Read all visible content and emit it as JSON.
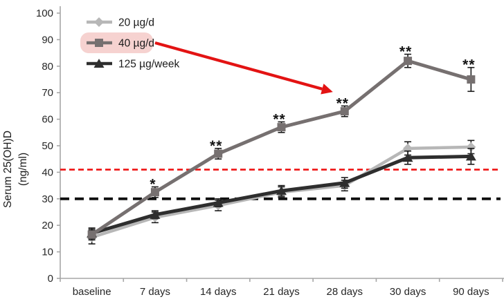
{
  "figure": {
    "background": "#ffffff"
  },
  "chart_data": {
    "type": "line",
    "title": "",
    "xlabel": "",
    "ylabel": "Serum 25(OH)D (ng/ml)",
    "ylabel_lines": [
      "Serum 25(OH)D",
      "(ng/ml)"
    ],
    "ylim": [
      0,
      100
    ],
    "ytick_step": 10,
    "grid": false,
    "legend_position": "top-left-inside",
    "categories": [
      "baseline",
      "7 days",
      "14 days",
      "21 days",
      "28 days",
      "30 days",
      "90 days"
    ],
    "series": [
      {
        "id": "20-ugd",
        "name": "20 µg/d",
        "color": "#b7b7b7",
        "marker": "diamond",
        "values": [
          15.5,
          23,
          27.5,
          32.5,
          35,
          49,
          49.5
        ],
        "errors": [
          2.5,
          2,
          2,
          2,
          2,
          2.5,
          2.5
        ],
        "significance": [
          "",
          "",
          "",
          "",
          "",
          "",
          ""
        ],
        "legend_highlight": false
      },
      {
        "id": "40-ugd",
        "name": "40 µg/d",
        "color": "#767070",
        "marker": "square",
        "values": [
          16.5,
          32.5,
          47,
          57,
          63,
          82,
          75
        ],
        "errors": [
          2,
          2,
          2,
          2,
          2,
          2.5,
          4.5
        ],
        "significance": [
          "",
          "*",
          "**",
          "**",
          "**",
          "**",
          "**"
        ],
        "legend_highlight": true
      },
      {
        "id": "125-ugweek",
        "name": "125 µg/week",
        "color": "#2e2e2e",
        "marker": "triangle",
        "values": [
          17,
          24,
          28.5,
          33,
          36,
          45.5,
          46
        ],
        "errors": [
          2,
          1.5,
          1.5,
          2,
          2,
          2.5,
          3
        ],
        "significance": [
          "",
          "",
          "",
          "",
          "",
          "",
          ""
        ],
        "legend_highlight": false
      }
    ],
    "reference_lines": [
      {
        "id": "red-dashed-line",
        "value": 41,
        "color": "#ee1111",
        "style": "dashed"
      },
      {
        "id": "black-dashed-line",
        "value": 30,
        "color": "#0f0f0f",
        "style": "dashed"
      }
    ],
    "annotation_arrow": {
      "from": "legend entry 40 µg/d",
      "to": "28 days point of 40 µg/d series",
      "color": "#e31313"
    },
    "colors": {
      "axis": "#a6a6a6",
      "tick_text": "#262626",
      "error_bar": "#1a1a1a",
      "significance_text": "#141414",
      "legend_text": "#1a1a1a",
      "legend_highlight_bg": "#f6d2d0"
    }
  }
}
